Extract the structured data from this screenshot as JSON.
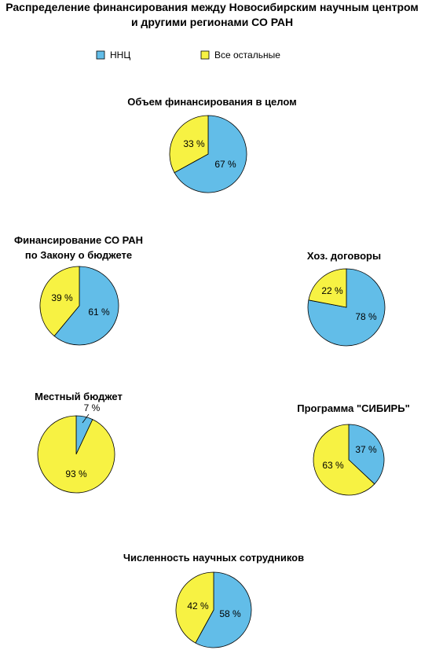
{
  "title_lines": [
    "Распределение финансирования между Новосибирским научным центром",
    "и другими регионами СО РАН"
  ],
  "colors": {
    "nnc": "#62bde8",
    "others": "#f7f243",
    "outline": "#000000"
  },
  "legend": [
    {
      "label": "ННЦ",
      "color": "#62bde8"
    },
    {
      "label": "Все остальные",
      "color": "#f7f243"
    }
  ],
  "chart_data": [
    {
      "type": "pie",
      "title": "Объем финансирования в целом",
      "slices": [
        {
          "name": "ННЦ",
          "value": 67,
          "label": "67 %"
        },
        {
          "name": "Все остальные",
          "value": 33,
          "label": "33 %"
        }
      ]
    },
    {
      "type": "pie",
      "title": "Финансирование СО РАН\nпо Закону о бюджете",
      "slices": [
        {
          "name": "ННЦ",
          "value": 61,
          "label": "61 %"
        },
        {
          "name": "Все остальные",
          "value": 39,
          "label": "39 %"
        }
      ]
    },
    {
      "type": "pie",
      "title": "Хоз. договоры",
      "slices": [
        {
          "name": "ННЦ",
          "value": 78,
          "label": "78 %"
        },
        {
          "name": "Все остальные",
          "value": 22,
          "label": "22 %"
        }
      ]
    },
    {
      "type": "pie",
      "title": "Местный бюджет",
      "slices": [
        {
          "name": "ННЦ",
          "value": 7,
          "label": "7 %"
        },
        {
          "name": "Все остальные",
          "value": 93,
          "label": "93 %"
        }
      ]
    },
    {
      "type": "pie",
      "title": "Программа \"СИБИРЬ\"",
      "slices": [
        {
          "name": "ННЦ",
          "value": 37,
          "label": "37 %"
        },
        {
          "name": "Все остальные",
          "value": 63,
          "label": "63 %"
        }
      ]
    },
    {
      "type": "pie",
      "title": "Численность научных сотрудников",
      "slices": [
        {
          "name": "ННЦ",
          "value": 58,
          "label": "58 %"
        },
        {
          "name": "Все остальные",
          "value": 42,
          "label": "42 %"
        }
      ]
    }
  ]
}
